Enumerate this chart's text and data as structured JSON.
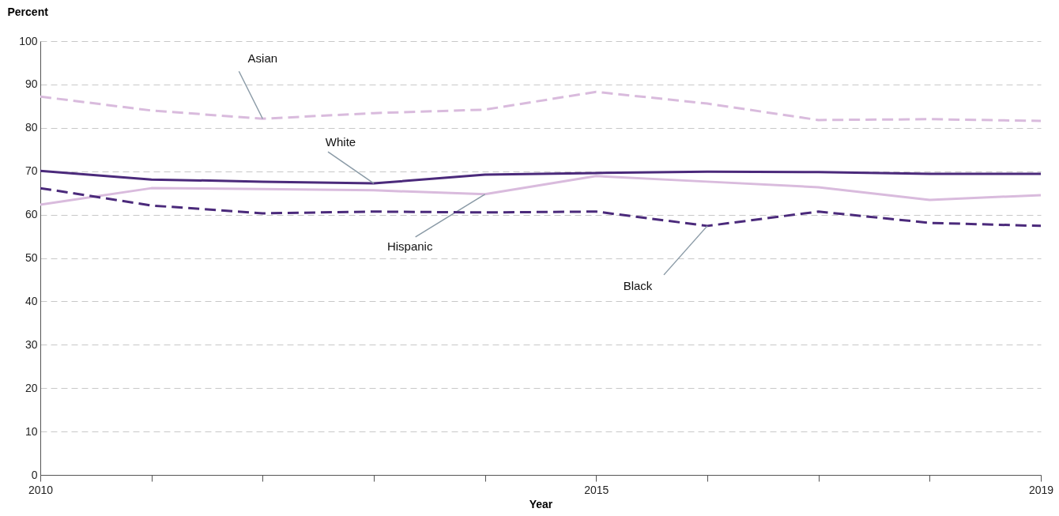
{
  "chart_data": {
    "type": "line",
    "xlabel": "Year",
    "ylabel": "Percent",
    "x": [
      2010,
      2011,
      2012,
      2013,
      2014,
      2015,
      2016,
      2017,
      2018,
      2019
    ],
    "xlim": [
      2010,
      2019
    ],
    "xticks": [
      2010,
      {
        "value": 2011,
        "label": null
      },
      {
        "value": 2012,
        "label": null
      },
      {
        "value": 2013,
        "label": null
      },
      {
        "value": 2014,
        "label": null
      },
      2015,
      {
        "value": 2016,
        "label": null
      },
      {
        "value": 2017,
        "label": null
      },
      {
        "value": 2018,
        "label": null
      },
      2019
    ],
    "ylim": [
      0,
      100
    ],
    "yticks": [
      0,
      10,
      20,
      30,
      40,
      50,
      60,
      70,
      80,
      90,
      100
    ],
    "grid": "y",
    "marker": "none",
    "series": [
      {
        "name": "Asian",
        "color": "#d9bbdd",
        "line_style": "dashed",
        "values": [
          87.2,
          84.0,
          82.1,
          83.4,
          84.2,
          88.3,
          85.6,
          81.8,
          82.0,
          81.6
        ]
      },
      {
        "name": "White",
        "color": "#4b2a7b",
        "line_style": "solid",
        "values": [
          70.1,
          68.1,
          67.6,
          67.2,
          69.2,
          69.6,
          69.9,
          69.8,
          69.4,
          69.4
        ]
      },
      {
        "name": "Hispanic",
        "color": "#d9bbdd",
        "line_style": "solid",
        "values": [
          62.3,
          66.1,
          65.9,
          65.6,
          64.7,
          68.9,
          67.6,
          66.3,
          63.4,
          64.5
        ]
      },
      {
        "name": "Black",
        "color": "#4b2a7b",
        "line_style": "dashed",
        "values": [
          66.1,
          62.1,
          60.3,
          60.7,
          60.5,
          60.7,
          57.4,
          60.7,
          58.1,
          57.4
        ]
      }
    ]
  }
}
